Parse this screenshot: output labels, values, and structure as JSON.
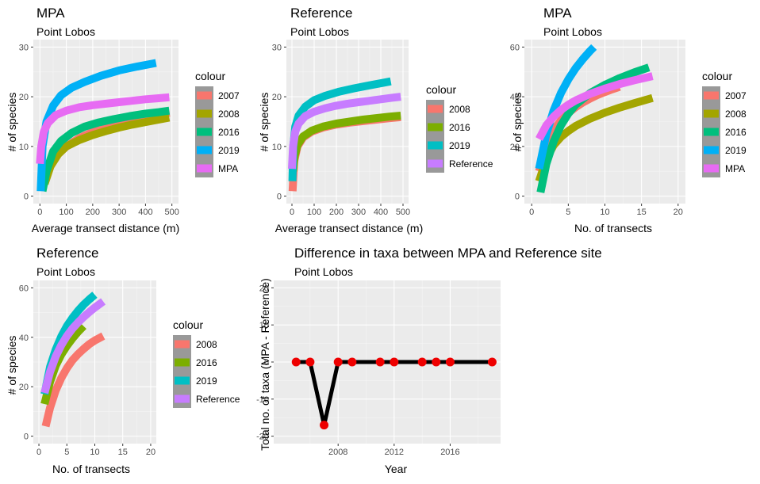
{
  "chart_data": [
    {
      "type": "line",
      "title": "MPA",
      "subtitle": "Point Lobos",
      "xlabel": "Average transect distance (m)",
      "ylabel": "# of species",
      "xlim": [
        -25,
        525
      ],
      "ylim": [
        -1.5,
        31.5
      ],
      "xticks": [
        0,
        100,
        200,
        300,
        400,
        500
      ],
      "yticks": [
        0,
        10,
        20,
        30
      ],
      "legend_title": "colour",
      "legend_placement": "right",
      "series": [
        {
          "name": "2007",
          "color": "#F8766D",
          "x": [
            12,
            30,
            60,
            100,
            150,
            200,
            250,
            300,
            350,
            400,
            450,
            490
          ],
          "y": [
            2,
            5,
            8,
            10,
            11.7,
            12.9,
            13.8,
            14.5,
            15.1,
            15.7,
            16.3,
            16.8
          ]
        },
        {
          "name": "2008",
          "color": "#A3A500",
          "x": [
            18,
            40,
            70,
            100,
            150,
            200,
            250,
            300,
            350,
            400,
            450,
            490
          ],
          "y": [
            2.5,
            6,
            8.5,
            10,
            11.3,
            12.3,
            13.1,
            13.8,
            14.4,
            14.9,
            15.4,
            15.8
          ]
        },
        {
          "name": "2016",
          "color": "#00BF7D",
          "x": [
            10,
            25,
            50,
            80,
            120,
            170,
            220,
            280,
            340,
            400,
            450,
            490
          ],
          "y": [
            1,
            5,
            9,
            11.1,
            12.7,
            14.0,
            14.8,
            15.5,
            16.1,
            16.6,
            16.9,
            17.2
          ]
        },
        {
          "name": "2019",
          "color": "#00B0F6",
          "x": [
            3,
            10,
            25,
            50,
            80,
            120,
            170,
            230,
            300,
            370,
            440
          ],
          "y": [
            1,
            10,
            15,
            18.2,
            20.3,
            21.8,
            23.0,
            24.2,
            25.3,
            26.1,
            26.8
          ]
        },
        {
          "name": "MPA",
          "color": "#E76BF3",
          "x": [
            0,
            5,
            15,
            30,
            60,
            100,
            150,
            200,
            250,
            300,
            350,
            400,
            450,
            490
          ],
          "y": [
            6.5,
            10,
            13,
            14.7,
            16.3,
            17.2,
            17.9,
            18.3,
            18.6,
            18.9,
            19.2,
            19.5,
            19.7,
            19.9
          ]
        }
      ]
    },
    {
      "type": "line",
      "title": "Reference",
      "subtitle": "Point Lobos",
      "xlabel": "Average transect distance (m)",
      "ylabel": "# of species",
      "xlim": [
        -25,
        525
      ],
      "ylim": [
        -1.5,
        31.5
      ],
      "xticks": [
        0,
        100,
        200,
        300,
        400,
        500
      ],
      "yticks": [
        0,
        10,
        20,
        30
      ],
      "legend_title": "colour",
      "legend_placement": "right",
      "series": [
        {
          "name": "2008",
          "color": "#F8766D",
          "x": [
            3,
            10,
            25,
            50,
            90,
            140,
            200,
            260,
            320,
            380,
            440,
            490
          ],
          "y": [
            1,
            7,
            10,
            11.8,
            13.0,
            13.8,
            14.4,
            14.8,
            15.1,
            15.4,
            15.7,
            15.9
          ]
        },
        {
          "name": "2016",
          "color": "#7CAE00",
          "x": [
            5,
            12,
            25,
            50,
            90,
            140,
            200,
            260,
            320,
            380,
            440,
            490
          ],
          "y": [
            5,
            8,
            10.3,
            12.0,
            13.2,
            14.0,
            14.6,
            15.0,
            15.4,
            15.7,
            16.0,
            16.2
          ]
        },
        {
          "name": "2019",
          "color": "#00BFC4",
          "x": [
            2,
            6,
            15,
            30,
            60,
            100,
            150,
            210,
            280,
            350,
            410,
            445
          ],
          "y": [
            3,
            10,
            14,
            16.2,
            18.0,
            19.3,
            20.2,
            21.0,
            21.7,
            22.3,
            22.8,
            23.1
          ]
        },
        {
          "name": "Reference",
          "color": "#C77CFF",
          "x": [
            0,
            5,
            15,
            30,
            60,
            100,
            150,
            200,
            250,
            300,
            350,
            400,
            450,
            490
          ],
          "y": [
            5.5,
            10,
            13,
            14.6,
            16.1,
            17.0,
            17.7,
            18.2,
            18.6,
            18.9,
            19.2,
            19.5,
            19.8,
            20.0
          ]
        }
      ]
    },
    {
      "type": "line",
      "title": "MPA",
      "subtitle": "Point Lobos",
      "xlabel": "No. of transects",
      "ylabel": "# of species",
      "xlim": [
        -1,
        21
      ],
      "ylim": [
        -3,
        63
      ],
      "xticks": [
        0,
        5,
        10,
        15,
        20
      ],
      "yticks": [
        0,
        20,
        40,
        60
      ],
      "legend_title": "colour",
      "legend_placement": "right",
      "series": [
        {
          "name": "2007",
          "color": "#F8766D",
          "x": [
            1,
            2,
            3,
            4,
            5,
            6,
            7,
            8,
            9,
            10,
            11,
            12
          ],
          "y": [
            10,
            20,
            26.5,
            30.5,
            33.5,
            35.8,
            37.7,
            39.3,
            40.7,
            41.9,
            43.0,
            44.0
          ]
        },
        {
          "name": "2008",
          "color": "#A3A500",
          "x": [
            1,
            2,
            3,
            4,
            5,
            6,
            8,
            10,
            12,
            14,
            16.5
          ],
          "y": [
            6,
            15,
            20.5,
            23.8,
            26.2,
            28.2,
            31.2,
            33.6,
            35.6,
            37.4,
            39.5
          ]
        },
        {
          "name": "2016",
          "color": "#00BF7D",
          "x": [
            1.2,
            2,
            3,
            4,
            5,
            6,
            8,
            10,
            12,
            14,
            16
          ],
          "y": [
            1.5,
            13,
            22,
            28.5,
            33.2,
            36.8,
            41.5,
            44.8,
            47.5,
            49.8,
            51.8
          ]
        },
        {
          "name": "2019",
          "color": "#00B0F6",
          "x": [
            1,
            2,
            3,
            4,
            5,
            6,
            7,
            8,
            8.5
          ],
          "y": [
            11,
            25,
            34.5,
            41.5,
            47,
            51.5,
            55.2,
            58.5,
            60
          ]
        },
        {
          "name": "MPA",
          "color": "#E76BF3",
          "x": [
            1,
            2,
            3,
            4,
            5,
            6,
            8,
            10,
            12,
            14,
            16.5
          ],
          "y": [
            23,
            28.5,
            32,
            34.7,
            36.8,
            38.5,
            41.2,
            43.3,
            45.1,
            46.6,
            48.3
          ]
        }
      ]
    },
    {
      "type": "line",
      "title": "Reference",
      "subtitle": "Point Lobos",
      "xlabel": "No. of transects",
      "ylabel": "# of species",
      "xlim": [
        -1,
        21
      ],
      "ylim": [
        -3,
        63
      ],
      "xticks": [
        0,
        5,
        10,
        15,
        20
      ],
      "yticks": [
        0,
        20,
        40,
        60
      ],
      "legend_title": "colour",
      "legend_placement": "right",
      "series": [
        {
          "name": "2008",
          "color": "#F8766D",
          "x": [
            1.2,
            2,
            3,
            4,
            5,
            6,
            7,
            8,
            9,
            10,
            11.5
          ],
          "y": [
            4,
            11.5,
            18.5,
            23.5,
            27.5,
            30.7,
            33.2,
            35.3,
            37.2,
            38.7,
            40.5
          ]
        },
        {
          "name": "2016",
          "color": "#7CAE00",
          "x": [
            1,
            2,
            3,
            4,
            5,
            6,
            7,
            8
          ],
          "y": [
            13,
            22,
            28.5,
            33,
            36.5,
            39.5,
            42.2,
            44.5
          ]
        },
        {
          "name": "2019",
          "color": "#00BFC4",
          "x": [
            1,
            2,
            3,
            4,
            5,
            6,
            7,
            8,
            9,
            10
          ],
          "y": [
            17,
            28,
            35,
            40.3,
            44.5,
            47.8,
            50.7,
            53.2,
            55.3,
            57.2
          ]
        },
        {
          "name": "Reference",
          "color": "#C77CFF",
          "x": [
            1,
            2,
            3,
            4,
            5,
            6,
            7,
            8,
            9,
            10,
            11.5
          ],
          "y": [
            17.5,
            26,
            32.2,
            36.8,
            40.5,
            43.5,
            46,
            48.2,
            50.2,
            52,
            54.5
          ]
        }
      ]
    },
    {
      "type": "line",
      "title": "Difference in taxa between MPA and Reference site",
      "subtitle": "Point Lobos",
      "xlabel": "Year",
      "ylabel": "Total no. of taxa (MPA - Reference)",
      "xlim": [
        2003.4,
        2019.6
      ],
      "ylim": [
        -22,
        22
      ],
      "xticks": [
        2008,
        2012,
        2016
      ],
      "yticks": [
        -20,
        -10,
        0,
        10,
        20
      ],
      "series": [
        {
          "name": "",
          "color": "#000000",
          "point_color": "#EE0000",
          "x": [
            2005,
            2006,
            2007,
            2008,
            2009,
            2011,
            2012,
            2014,
            2015,
            2016,
            2019
          ],
          "y": [
            0,
            0,
            -17,
            0,
            0,
            0,
            0,
            0,
            0,
            0,
            0
          ]
        }
      ]
    }
  ]
}
